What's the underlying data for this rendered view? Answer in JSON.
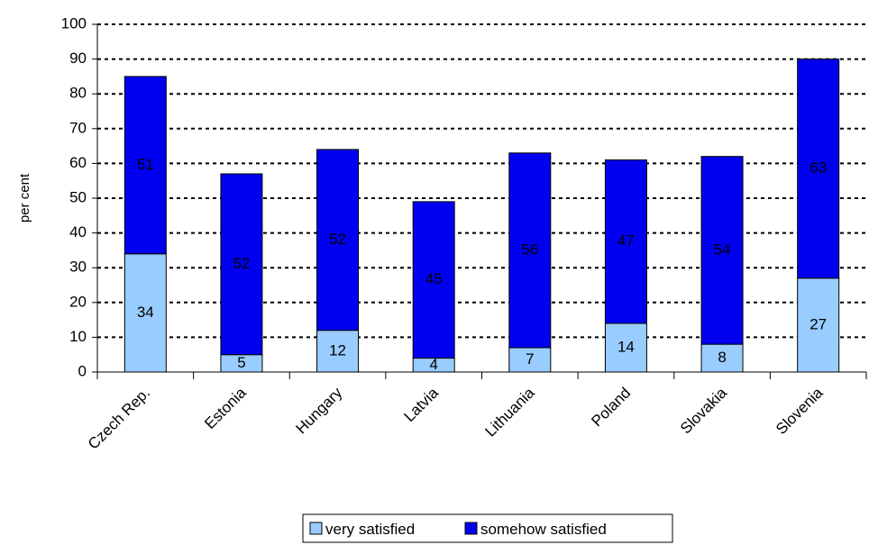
{
  "chart_data": {
    "type": "bar",
    "stacked": true,
    "categories": [
      "Czech Rep.",
      "Estonia",
      "Hungary",
      "Latvia",
      "Lithuania",
      "Poland",
      "Slovakia",
      "Slovenia"
    ],
    "series": [
      {
        "name": "very satisfied",
        "color": "#99ccff",
        "values": [
          34,
          5,
          12,
          4,
          7,
          14,
          8,
          27
        ]
      },
      {
        "name": "somehow satisfied",
        "color": "#0000ee",
        "values": [
          51,
          52,
          52,
          45,
          56,
          47,
          54,
          63
        ]
      }
    ],
    "ylabel": "per cent",
    "ylim": [
      0,
      100
    ],
    "yticks": [
      0,
      10,
      20,
      30,
      40,
      50,
      60,
      70,
      80,
      90,
      100
    ],
    "grid": "dashed horizontal",
    "legend": "bottom"
  }
}
